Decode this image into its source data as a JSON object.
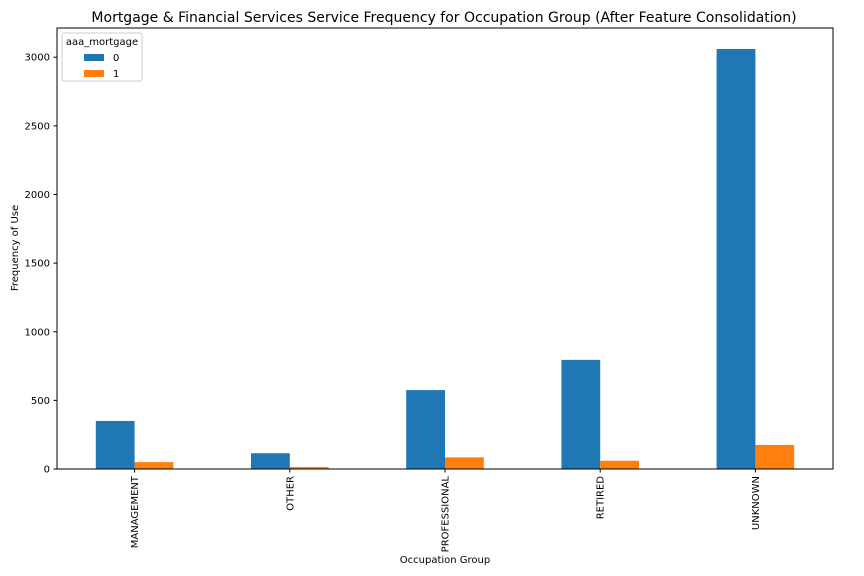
{
  "chart_data": {
    "type": "bar",
    "title": "Mortgage & Financial Services Service Frequency for Occupation Group (After Feature Consolidation)",
    "xlabel": "Occupation Group",
    "ylabel": "Frequency of Use",
    "categories": [
      "MANAGEMENT",
      "OTHER",
      "PROFESSIONAL",
      "RETIRED",
      "UNKNOWN"
    ],
    "series": [
      {
        "name": "0",
        "color": "#1f77b4",
        "values": [
          350,
          115,
          575,
          795,
          3060
        ]
      },
      {
        "name": "1",
        "color": "#ff7f0e",
        "values": [
          50,
          15,
          85,
          60,
          175
        ]
      }
    ],
    "ylim": [
      0,
      3213
    ],
    "yticks": [
      0,
      500,
      1000,
      1500,
      2000,
      2500,
      3000
    ],
    "legend": {
      "title": "aaa_mortgage",
      "placement": "top-left"
    },
    "grid": false
  }
}
